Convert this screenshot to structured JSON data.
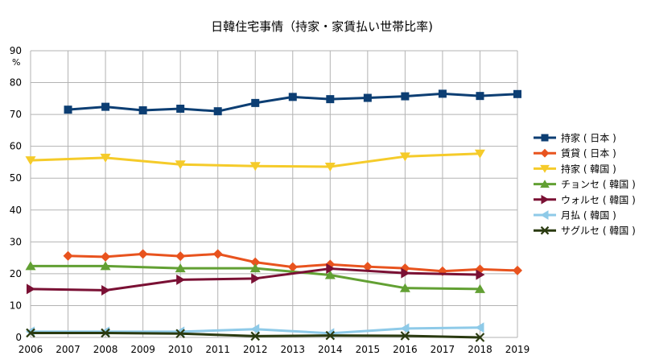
{
  "chart_data": {
    "type": "line",
    "title": "日韓住宅事情（持家・家賃払い世帯比率)",
    "y_unit": "%",
    "xlabel": "",
    "ylabel": "",
    "ylim": [
      0,
      90
    ],
    "y_ticks": [
      0,
      10,
      20,
      30,
      40,
      50,
      60,
      70,
      80,
      90
    ],
    "x_ticks": [
      2006,
      2007,
      2008,
      2009,
      2010,
      2011,
      2012,
      2013,
      2014,
      2015,
      2016,
      2017,
      2018,
      2019
    ],
    "grid": true,
    "legend_position": "right",
    "series": [
      {
        "name": "持家 ( 日本 )",
        "color": "#0c3e73",
        "marker": "square",
        "x": [
          2007,
          2008,
          2009,
          2010,
          2011,
          2012,
          2013,
          2014,
          2015,
          2016,
          2017,
          2018,
          2019
        ],
        "y": [
          71.5,
          72.4,
          71.3,
          71.8,
          71.0,
          73.6,
          75.5,
          74.8,
          75.2,
          75.7,
          76.5,
          75.8,
          76.4
        ]
      },
      {
        "name": "賃貸 ( 日本 )",
        "color": "#e8531e",
        "marker": "diamond",
        "x": [
          2007,
          2008,
          2009,
          2010,
          2011,
          2012,
          2013,
          2014,
          2015,
          2016,
          2017,
          2018,
          2019
        ],
        "y": [
          25.6,
          25.3,
          26.2,
          25.5,
          26.2,
          23.6,
          22.1,
          22.9,
          22.2,
          21.7,
          20.8,
          21.4,
          21.0
        ]
      },
      {
        "name": "持家 ( 韓国 )",
        "color": "#f5cb2a",
        "marker": "triangle-down",
        "x": [
          2006,
          2008,
          2010,
          2012,
          2014,
          2016,
          2018
        ],
        "y": [
          55.6,
          56.4,
          54.3,
          53.8,
          53.6,
          56.8,
          57.7
        ]
      },
      {
        "name": "チョンセ ( 韓国 )",
        "color": "#62a033",
        "marker": "triangle-up",
        "x": [
          2006,
          2008,
          2010,
          2012,
          2014,
          2016,
          2018
        ],
        "y": [
          22.4,
          22.4,
          21.7,
          21.7,
          19.6,
          15.5,
          15.2
        ]
      },
      {
        "name": "ウォルセ ( 韓国 )",
        "color": "#7a1034",
        "marker": "triangle-right",
        "x": [
          2006,
          2008,
          2010,
          2012,
          2014,
          2016,
          2018
        ],
        "y": [
          15.2,
          14.8,
          18.1,
          18.5,
          21.6,
          20.2,
          19.7
        ]
      },
      {
        "name": "月払 ( 韓国 )",
        "color": "#8ecae8",
        "marker": "triangle-left",
        "x": [
          2006,
          2008,
          2010,
          2012,
          2014,
          2016,
          2018
        ],
        "y": [
          1.8,
          1.8,
          1.8,
          2.6,
          1.3,
          2.8,
          3.1
        ]
      },
      {
        "name": "サグルセ ( 韓国 )",
        "color": "#2a3a10",
        "marker": "x",
        "x": [
          2006,
          2008,
          2010,
          2012,
          2014,
          2016,
          2018
        ],
        "y": [
          1.4,
          1.4,
          1.2,
          0.4,
          0.6,
          0.5,
          0.0
        ]
      }
    ]
  }
}
